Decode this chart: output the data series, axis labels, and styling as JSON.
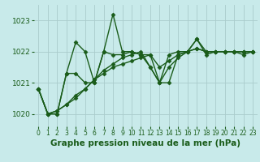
{
  "background_color": "#c8eaea",
  "grid_color": "#aacccc",
  "line_color": "#1a5c1a",
  "marker": "D",
  "markersize": 2.5,
  "linewidth": 1.0,
  "xlabel": "Graphe pression niveau de la mer (hPa)",
  "xlabel_fontsize": 7.5,
  "xlim": [
    -0.5,
    23.5
  ],
  "ylim": [
    1019.6,
    1023.5
  ],
  "yticks": [
    1020,
    1021,
    1022,
    1023
  ],
  "ytick_fontsize": 6.5,
  "xtick_fontsize": 5.5,
  "xticks": [
    0,
    1,
    2,
    3,
    4,
    5,
    6,
    7,
    8,
    9,
    10,
    11,
    12,
    13,
    14,
    15,
    16,
    17,
    18,
    19,
    20,
    21,
    22,
    23
  ],
  "series": [
    [
      1020.8,
      1020.0,
      1020.0,
      1021.3,
      1022.3,
      1022.0,
      1021.0,
      1022.0,
      1023.2,
      1022.0,
      1022.0,
      1021.9,
      1021.9,
      1021.0,
      1021.9,
      1022.0,
      1022.0,
      1022.4,
      1022.0,
      1022.0,
      1022.0,
      1022.0,
      1022.0,
      1022.0
    ],
    [
      1020.8,
      1020.0,
      1020.0,
      1021.3,
      1021.3,
      1021.0,
      1021.0,
      1022.0,
      1021.9,
      1021.9,
      1022.0,
      1021.9,
      1021.5,
      1021.0,
      1021.0,
      1021.9,
      1022.0,
      1022.4,
      1021.9,
      1022.0,
      1022.0,
      1022.0,
      1021.9,
      1022.0
    ],
    [
      1020.8,
      1020.0,
      1020.1,
      1020.3,
      1020.6,
      1020.8,
      1021.1,
      1021.3,
      1021.5,
      1021.6,
      1021.7,
      1021.8,
      1021.9,
      1021.5,
      1021.7,
      1021.9,
      1022.0,
      1022.1,
      1022.0,
      1022.0,
      1022.0,
      1022.0,
      1022.0,
      1022.0
    ],
    [
      1020.8,
      1020.0,
      1020.1,
      1020.3,
      1020.5,
      1020.8,
      1021.1,
      1021.4,
      1021.6,
      1021.8,
      1021.9,
      1022.0,
      1021.5,
      1021.0,
      1021.5,
      1021.8,
      1022.0,
      1022.1,
      1022.0,
      1022.0,
      1022.0,
      1022.0,
      1022.0,
      1022.0
    ]
  ]
}
